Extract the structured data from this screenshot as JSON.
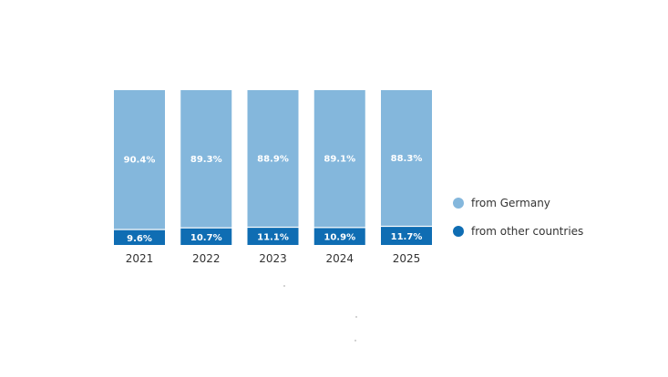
{
  "chart_data": {
    "type": "bar",
    "stacked": true,
    "normalized_percent": true,
    "categories": [
      "2021",
      "2022",
      "2023",
      "2024",
      "2025"
    ],
    "series": [
      {
        "name": "from other countries",
        "values": [
          9.6,
          10.7,
          11.1,
          10.9,
          11.7
        ],
        "labels": [
          "9.6%",
          "10.7%",
          "11.1%",
          "10.9%",
          "11.7%"
        ],
        "color": "#0f6db3"
      },
      {
        "name": "from Germany",
        "values": [
          90.4,
          89.3,
          88.9,
          89.1,
          88.3
        ],
        "labels": [
          "90.4%",
          "89.3%",
          "88.9%",
          "89.1%",
          "88.3%"
        ],
        "color": "#84b7dc"
      }
    ],
    "ylim": [
      0,
      100
    ],
    "title": "",
    "xlabel": "",
    "ylabel": "",
    "grid": false,
    "legend_position": "right"
  }
}
